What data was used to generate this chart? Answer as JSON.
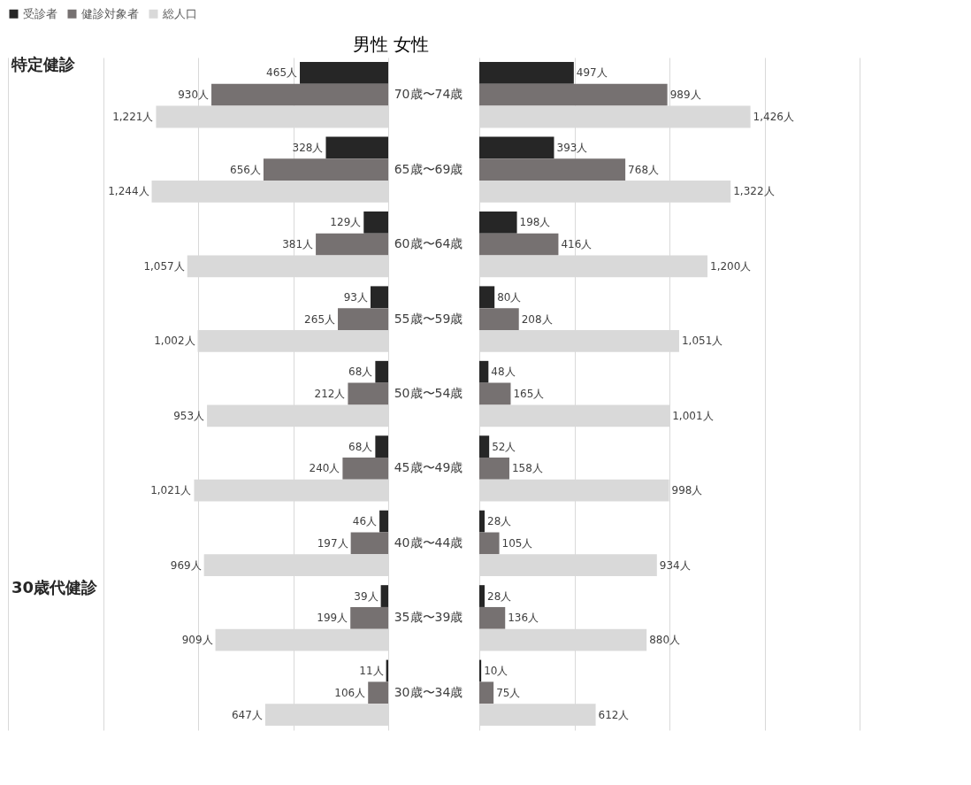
{
  "chart_data": [
    {
      "type": "bar",
      "orientation": "horizontal",
      "title": "男性",
      "categories": [
        "70歳〜74歳",
        "65歳〜69歳",
        "60歳〜64歳",
        "55歳〜59歳",
        "50歳〜54歳",
        "45歳〜49歳",
        "40歳〜44歳",
        "35歳〜39歳",
        "30歳〜34歳"
      ],
      "series": [
        {
          "name": "受診者",
          "color": "#262626",
          "values": [
            465,
            328,
            129,
            93,
            68,
            68,
            46,
            39,
            11
          ],
          "value_labels": [
            "465人",
            "328人",
            "129人",
            "93人",
            "68人",
            "68人",
            "46人",
            "39人",
            "11人"
          ]
        },
        {
          "name": "健診対象者",
          "color": "#767171",
          "values": [
            930,
            656,
            381,
            265,
            212,
            240,
            197,
            199,
            106
          ],
          "value_labels": [
            "930人",
            "656人",
            "381人",
            "265人",
            "212人",
            "240人",
            "197人",
            "199人",
            "106人"
          ]
        },
        {
          "name": "総人口",
          "color": "#d9d9d9",
          "values": [
            1221,
            1244,
            1057,
            1002,
            953,
            1021,
            969,
            909,
            647
          ],
          "value_labels": [
            "1,221人",
            "1,244人",
            "1,057人",
            "1,002人",
            "953人",
            "1,021人",
            "969人",
            "909人",
            "647人"
          ]
        }
      ],
      "xlim": [
        2000,
        0
      ],
      "xticks": [
        {
          "value": 2000,
          "label": null
        },
        {
          "value": 1500,
          "label": null
        },
        {
          "value": 1000,
          "label": null
        },
        {
          "value": 500,
          "label": null
        },
        {
          "value": 0,
          "label": null
        }
      ],
      "grid": "x",
      "tick_labels": false,
      "legend": "top",
      "annotations": [
        "特定健診",
        "30歳代健診"
      ]
    },
    {
      "type": "bar",
      "orientation": "horizontal",
      "title": "女性",
      "categories": [
        "70歳〜74歳",
        "65歳〜69歳",
        "60歳〜64歳",
        "55歳〜59歳",
        "50歳〜54歳",
        "45歳〜49歳",
        "40歳〜44歳",
        "35歳〜39歳",
        "30歳〜34歳"
      ],
      "series": [
        {
          "name": "受診者",
          "color": "#262626",
          "values": [
            497,
            393,
            198,
            80,
            48,
            52,
            28,
            28,
            10
          ],
          "value_labels": [
            "497人",
            "393人",
            "198人",
            "80人",
            "48人",
            "52人",
            "28人",
            "28人",
            "10人"
          ]
        },
        {
          "name": "健診対象者",
          "color": "#767171",
          "values": [
            989,
            768,
            416,
            208,
            165,
            158,
            105,
            136,
            75
          ],
          "value_labels": [
            "989人",
            "768人",
            "416人",
            "208人",
            "165人",
            "158人",
            "105人",
            "136人",
            "75人"
          ]
        },
        {
          "name": "総人口",
          "color": "#d9d9d9",
          "values": [
            1426,
            1322,
            1200,
            1051,
            1001,
            998,
            934,
            880,
            612
          ],
          "value_labels": [
            "1,426人",
            "1,322人",
            "1,200人",
            "1,051人",
            "1,001人",
            "998人",
            "934人",
            "880人",
            "612人"
          ]
        }
      ],
      "xlim": [
        0,
        2000
      ],
      "xticks": [
        {
          "value": 0,
          "label": null
        },
        {
          "value": 500,
          "label": null
        },
        {
          "value": 1000,
          "label": null
        },
        {
          "value": 1500,
          "label": null
        },
        {
          "value": 2000,
          "label": null
        }
      ],
      "grid": "x",
      "tick_labels": "y",
      "legend": "top"
    }
  ]
}
